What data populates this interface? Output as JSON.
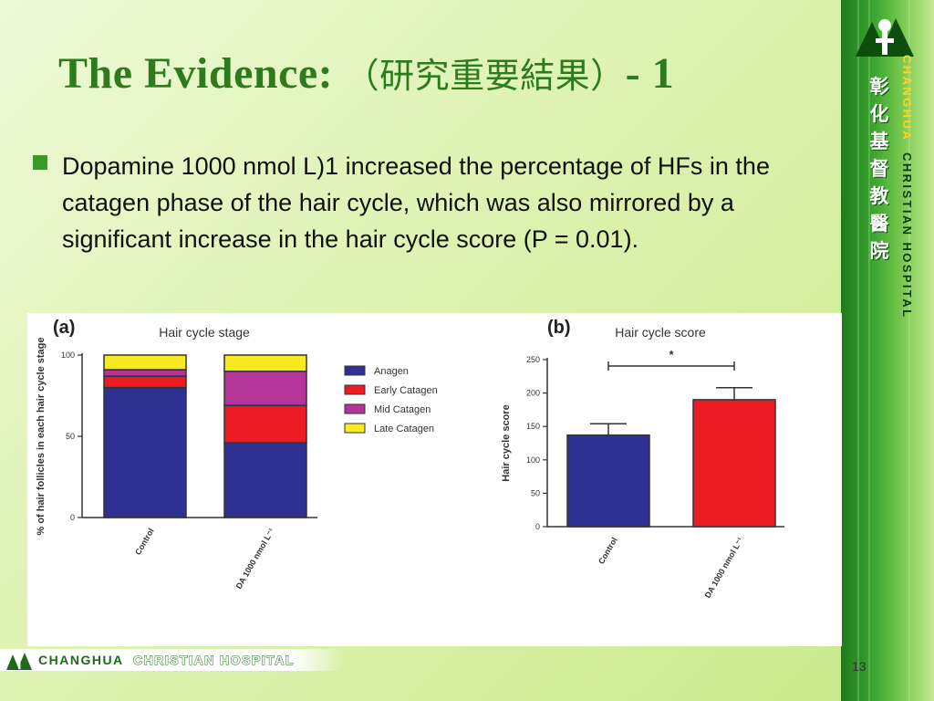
{
  "slide": {
    "title_en": "The Evidence:",
    "title_cjk": "（研究重要結果）",
    "title_suffix": "- 1",
    "bullet": "Dopamine 1000 nmol L)1 increased the percentage of HFs in the catagen phase of the hair cycle, which was also mirrored by a significant increase in the hair cycle score (P = 0.01).",
    "page_number": "13"
  },
  "branding": {
    "cn_name": [
      "彰",
      "化",
      "基",
      "督",
      "教",
      "醫",
      "院"
    ],
    "en_name_part1": "CHANGHUA",
    "en_name_part2": "CHRISTIAN HOSPITAL",
    "footer_part1": "CHANGHUA",
    "footer_part2": "CHRISTIAN HOSPITAL",
    "brand_color": "#2e7b1e"
  },
  "chart_data": [
    {
      "panel_label": "(a)",
      "type": "bar",
      "stacked": true,
      "title": "Hair cycle stage",
      "ylabel": "% of hair follicles in each hair cycle stage",
      "xlabel": "",
      "categories": [
        "Control",
        "DA 1000 nmol L⁻¹"
      ],
      "ylim": [
        0,
        100
      ],
      "yticks": [
        0,
        50,
        100
      ],
      "grid": false,
      "legend_position": "right",
      "series": [
        {
          "name": "Anagen",
          "color": "#2e3192",
          "values": [
            80,
            46
          ]
        },
        {
          "name": "Early Catagen",
          "color": "#ed1c24",
          "values": [
            7,
            23
          ]
        },
        {
          "name": "Mid Catagen",
          "color": "#b5349a",
          "values": [
            4,
            21
          ]
        },
        {
          "name": "Late Catagen",
          "color": "#f7ea1f",
          "values": [
            9,
            10
          ]
        }
      ]
    },
    {
      "panel_label": "(b)",
      "type": "bar",
      "title": "Hair cycle score",
      "ylabel": "Hair cycle score",
      "xlabel": "",
      "categories": [
        "Control",
        "DA 1000 nmol L⁻¹"
      ],
      "ylim": [
        0,
        250
      ],
      "yticks": [
        0,
        50,
        100,
        150,
        200,
        250
      ],
      "grid": false,
      "series": [
        {
          "values": [
            137,
            190
          ],
          "errors": [
            17,
            18
          ],
          "colors": [
            "#2e3192",
            "#ed1c24"
          ]
        }
      ],
      "significance": "*"
    }
  ]
}
